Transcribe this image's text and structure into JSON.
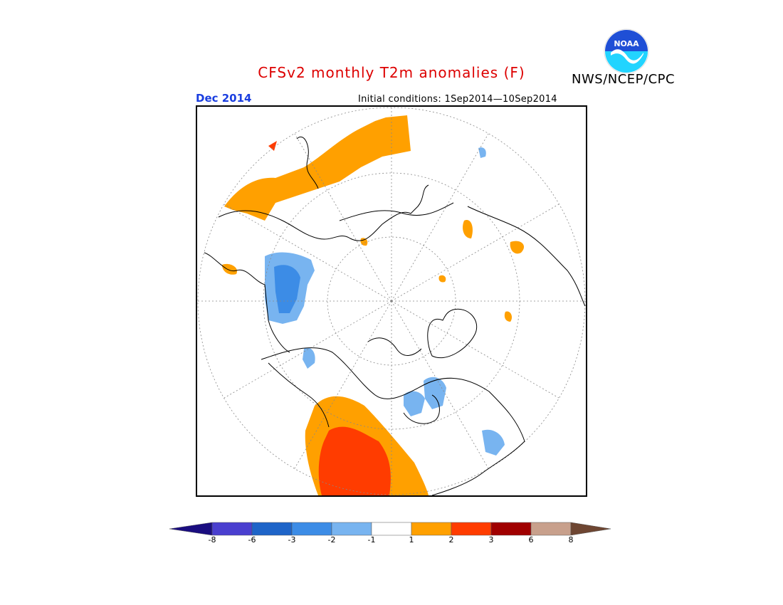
{
  "header": {
    "title": "CFSv2 monthly T2m anomalies (F)",
    "agency": "NWS/NCEP/CPC",
    "logo_text": "NOAA",
    "month": "Dec 2014",
    "initial_conditions": "Initial conditions: 1Sep2014—10Sep2014"
  },
  "colors": {
    "title": "#dd0000",
    "month": "#1a3ee0"
  },
  "legend": {
    "bins": [
      {
        "range": "< -8",
        "color": "#1a0d80"
      },
      {
        "range": "-8 to -6",
        "color": "#4a3fcf"
      },
      {
        "range": "-6 to -3",
        "color": "#1e64c8"
      },
      {
        "range": "-3 to -2",
        "color": "#3c8ce6"
      },
      {
        "range": "-2 to -1",
        "color": "#78b4f0"
      },
      {
        "range": "-1 to 1",
        "color": "#ffffff"
      },
      {
        "range": "1 to 2",
        "color": "#ffa000"
      },
      {
        "range": "2 to 3",
        "color": "#ff3c00"
      },
      {
        "range": "3 to 6",
        "color": "#a00000"
      },
      {
        "range": "6 to 8",
        "color": "#c8a08c"
      },
      {
        "range": "> 8",
        "color": "#6e4632"
      }
    ],
    "tick_labels": [
      "-8",
      "-6",
      "-3",
      "-2",
      "-1",
      "1",
      "2",
      "3",
      "6",
      "8"
    ]
  }
}
